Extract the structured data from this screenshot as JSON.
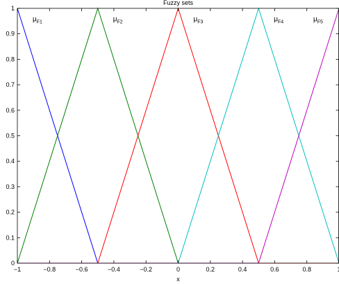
{
  "chart_data": {
    "type": "line",
    "title": "Fuzzy sets",
    "xlabel": "x",
    "ylabel": "",
    "xlim": [
      -1,
      1
    ],
    "ylim": [
      0,
      1
    ],
    "xticks": [
      -1,
      -0.8,
      -0.6,
      -0.4,
      -0.2,
      0,
      0.2,
      0.4,
      0.6,
      0.8,
      1
    ],
    "xtick_labels": [
      "−1",
      "−0.8",
      "−0.6",
      "−0.4",
      "−0.2",
      "0",
      "0.2",
      "0.4",
      "0.6",
      "0.8",
      "1"
    ],
    "yticks": [
      0,
      0.1,
      0.2,
      0.3,
      0.4,
      0.5,
      0.6,
      0.7,
      0.8,
      0.9,
      1
    ],
    "ytick_labels": [
      "0",
      "0.1",
      "0.2",
      "0.3",
      "0.4",
      "0.5",
      "0.6",
      "0.7",
      "0.8",
      "0.9",
      "1"
    ],
    "grid": false,
    "series": [
      {
        "color": "#0000ff",
        "x": [
          -1,
          -0.5,
          1
        ],
        "y": [
          1,
          0,
          0
        ]
      },
      {
        "color": "#008000",
        "x": [
          -1,
          -0.5,
          0,
          1
        ],
        "y": [
          0,
          1,
          0,
          0
        ]
      },
      {
        "color": "#ff0000",
        "x": [
          -1,
          -0.5,
          0,
          0.5,
          1
        ],
        "y": [
          0,
          0,
          1,
          0,
          0
        ]
      },
      {
        "color": "#00bfbf",
        "x": [
          -1,
          0,
          0.5,
          1
        ],
        "y": [
          0,
          0,
          1,
          0
        ]
      },
      {
        "color": "#bf00bf",
        "x": [
          -1,
          0.5,
          1
        ],
        "y": [
          0,
          0,
          1
        ]
      }
    ],
    "annotations": [
      {
        "base": "μ",
        "sub": "F1",
        "x": -0.905,
        "y": 0.95
      },
      {
        "base": "μ",
        "sub": "F2",
        "x": -0.405,
        "y": 0.95
      },
      {
        "base": "μ",
        "sub": "F3",
        "x": 0.095,
        "y": 0.95
      },
      {
        "base": "μ",
        "sub": "F4",
        "x": 0.595,
        "y": 0.95
      },
      {
        "base": "μ",
        "sub": "F5",
        "x": 0.84,
        "y": 0.95
      }
    ]
  }
}
